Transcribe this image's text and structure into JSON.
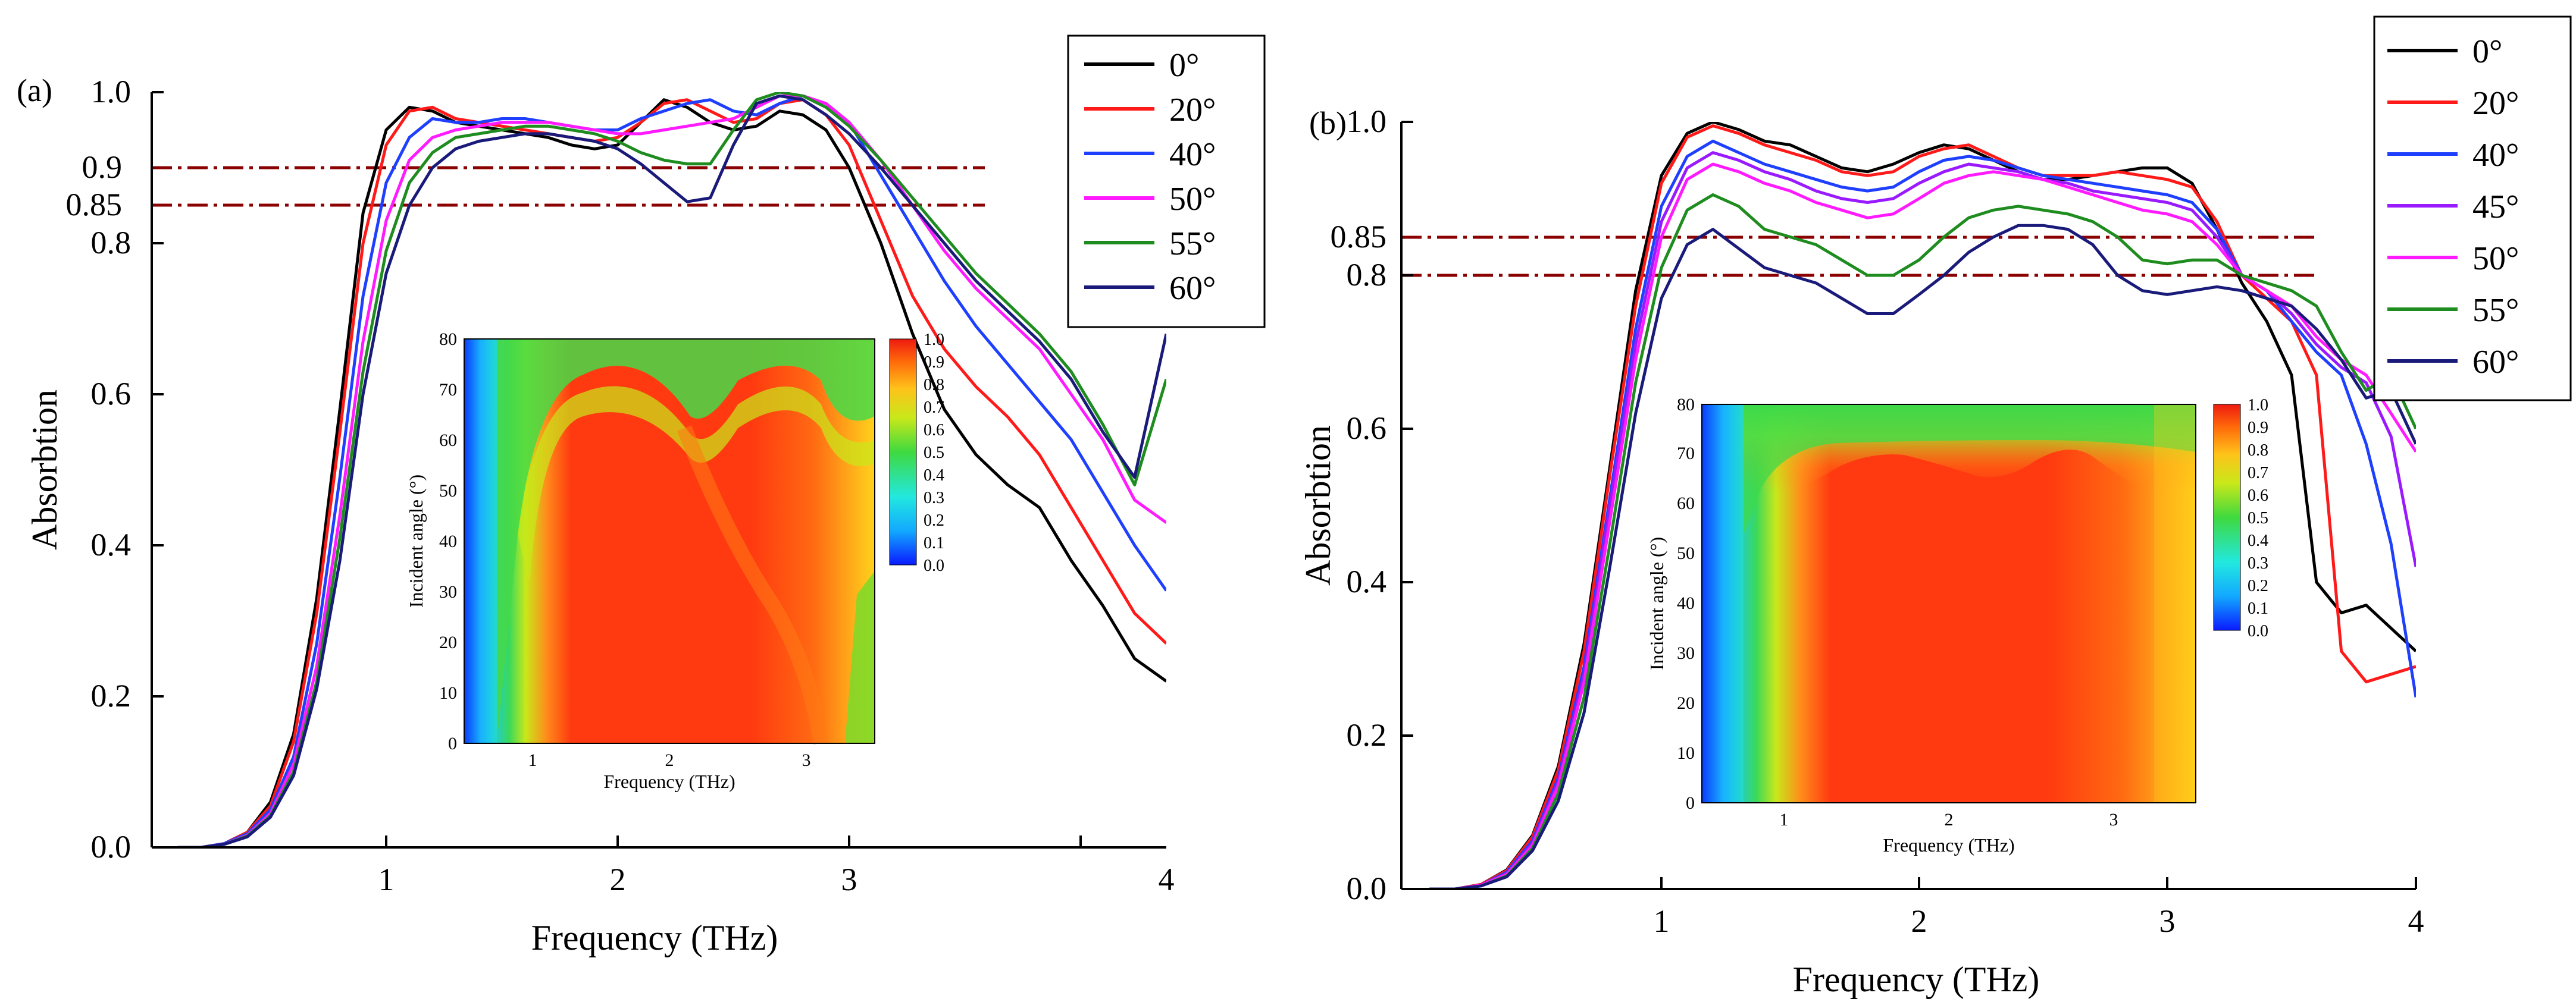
{
  "chart_data": [
    {
      "panel_label": "(a)",
      "type": "line",
      "xlabel": "Frequency (THz)",
      "ylabel": "Absorbtion",
      "xlim": [
        0.1,
        4.0
      ],
      "ylim": [
        0.0,
        1.0
      ],
      "x_ticks": [
        1,
        2,
        3,
        4
      ],
      "x_tick_labels": [
        "1",
        "2",
        "3",
        "4"
      ],
      "y_ticks": [
        0.0,
        0.2,
        0.4,
        0.6,
        0.8,
        0.85,
        0.9,
        1.0
      ],
      "y_tick_labels": [
        "0.0",
        "0.2",
        "0.4",
        "0.6",
        "0.8",
        "0.85",
        "0.9",
        "1.0"
      ],
      "legend_position": "top-right outside",
      "reference_lines": [
        {
          "y": 0.9,
          "style": "dash-dot",
          "color": "#8b0000"
        },
        {
          "y": 0.85,
          "style": "dash-dot",
          "color": "#8b0000"
        }
      ],
      "x": [
        0.1,
        0.2,
        0.3,
        0.4,
        0.5,
        0.6,
        0.7,
        0.8,
        0.9,
        1.0,
        1.1,
        1.2,
        1.3,
        1.4,
        1.5,
        1.6,
        1.7,
        1.8,
        1.9,
        2.0,
        2.1,
        2.2,
        2.3,
        2.4,
        2.5,
        2.6,
        2.7,
        2.8,
        2.9,
        3.0,
        3.1,
        3.2,
        3.3,
        3.4,
        3.5,
        3.6,
        3.7,
        3.8,
        3.9,
        4.0
      ],
      "series": [
        {
          "name": "0°",
          "color": "#000000",
          "values": [
            0.0,
            0.0,
            0.005,
            0.02,
            0.06,
            0.15,
            0.33,
            0.58,
            0.84,
            0.95,
            0.98,
            0.975,
            0.96,
            0.955,
            0.95,
            0.945,
            0.94,
            0.93,
            0.925,
            0.93,
            0.96,
            0.99,
            0.98,
            0.96,
            0.95,
            0.955,
            0.975,
            0.97,
            0.95,
            0.9,
            0.8,
            0.68,
            0.58,
            0.52,
            0.48,
            0.45,
            0.38,
            0.32,
            0.25,
            0.22
          ]
        },
        {
          "name": "20°",
          "color": "#ff1a1a",
          "values": [
            0.0,
            0.0,
            0.005,
            0.02,
            0.055,
            0.14,
            0.31,
            0.55,
            0.8,
            0.93,
            0.975,
            0.98,
            0.965,
            0.96,
            0.955,
            0.95,
            0.945,
            0.94,
            0.935,
            0.94,
            0.96,
            0.985,
            0.99,
            0.975,
            0.96,
            0.965,
            0.985,
            0.99,
            0.97,
            0.93,
            0.83,
            0.73,
            0.66,
            0.61,
            0.57,
            0.52,
            0.45,
            0.38,
            0.31,
            0.27
          ]
        },
        {
          "name": "40°",
          "color": "#1f3fff",
          "values": [
            0.0,
            0.0,
            0.005,
            0.018,
            0.05,
            0.12,
            0.27,
            0.49,
            0.73,
            0.88,
            0.94,
            0.965,
            0.96,
            0.96,
            0.965,
            0.965,
            0.96,
            0.955,
            0.95,
            0.95,
            0.965,
            0.975,
            0.985,
            0.99,
            0.975,
            0.97,
            0.985,
            0.995,
            0.985,
            0.96,
            0.89,
            0.82,
            0.75,
            0.69,
            0.64,
            0.59,
            0.54,
            0.47,
            0.4,
            0.34
          ]
        },
        {
          "name": "50°",
          "color": "#ff1aff",
          "values": [
            0.0,
            0.0,
            0.004,
            0.016,
            0.045,
            0.11,
            0.24,
            0.44,
            0.67,
            0.83,
            0.91,
            0.94,
            0.95,
            0.955,
            0.96,
            0.96,
            0.96,
            0.955,
            0.95,
            0.945,
            0.945,
            0.95,
            0.955,
            0.96,
            0.965,
            0.98,
            0.995,
            0.995,
            0.985,
            0.96,
            0.91,
            0.85,
            0.79,
            0.74,
            0.7,
            0.66,
            0.6,
            0.54,
            0.46,
            0.43
          ]
        },
        {
          "name": "55°",
          "color": "#1e8c1e",
          "values": [
            0.0,
            0.0,
            0.004,
            0.015,
            0.042,
            0.1,
            0.22,
            0.41,
            0.63,
            0.79,
            0.88,
            0.92,
            0.94,
            0.945,
            0.95,
            0.955,
            0.955,
            0.95,
            0.945,
            0.935,
            0.92,
            0.91,
            0.905,
            0.905,
            0.95,
            0.99,
            1.0,
            0.995,
            0.98,
            0.955,
            0.91,
            0.86,
            0.81,
            0.76,
            0.72,
            0.68,
            0.63,
            0.56,
            0.48,
            0.62
          ]
        },
        {
          "name": "60°",
          "color": "#1a1a7a",
          "values": [
            0.0,
            0.0,
            0.004,
            0.014,
            0.04,
            0.095,
            0.21,
            0.38,
            0.6,
            0.76,
            0.85,
            0.9,
            0.925,
            0.935,
            0.94,
            0.945,
            0.945,
            0.94,
            0.935,
            0.925,
            0.905,
            0.88,
            0.855,
            0.86,
            0.93,
            0.985,
            0.995,
            0.99,
            0.97,
            0.945,
            0.9,
            0.85,
            0.8,
            0.75,
            0.71,
            0.67,
            0.62,
            0.55,
            0.49,
            0.68
          ]
        }
      ],
      "inset": {
        "type": "heatmap",
        "xlabel": "Frequency (THz)",
        "ylabel": "Incident angle (°)",
        "xlim": [
          0.5,
          3.5
        ],
        "ylim": [
          0,
          80
        ],
        "x_tick_labels": [
          "1",
          "2",
          "3"
        ],
        "y_tick_labels": [
          "0",
          "10",
          "20",
          "30",
          "40",
          "50",
          "60",
          "70",
          "80"
        ],
        "colorbar_tick_labels": [
          "0.0",
          "0.1",
          "0.2",
          "0.3",
          "0.4",
          "0.5",
          "0.6",
          "0.7",
          "0.8",
          "0.9",
          "1.0"
        ]
      }
    },
    {
      "panel_label": "(b)",
      "type": "line",
      "xlabel": "Frequency (THz)",
      "ylabel": "Absorbtion",
      "xlim": [
        0.1,
        4.0
      ],
      "ylim": [
        0.0,
        1.0
      ],
      "x_ticks": [
        1,
        2,
        3,
        4
      ],
      "x_tick_labels": [
        "1",
        "2",
        "3",
        "4"
      ],
      "y_ticks": [
        0.0,
        0.2,
        0.4,
        0.6,
        0.8,
        0.85,
        1.0
      ],
      "y_tick_labels": [
        "0.0",
        "0.2",
        "0.4",
        "0.6",
        "0.8",
        "0.85",
        "1.0"
      ],
      "legend_position": "top-right outside",
      "reference_lines": [
        {
          "y": 0.85,
          "style": "dash-dot",
          "color": "#8b0000"
        },
        {
          "y": 0.8,
          "style": "dash-dot",
          "color": "#8b0000"
        }
      ],
      "x": [
        0.1,
        0.2,
        0.3,
        0.4,
        0.5,
        0.6,
        0.7,
        0.8,
        0.9,
        1.0,
        1.1,
        1.2,
        1.3,
        1.4,
        1.5,
        1.6,
        1.7,
        1.8,
        1.9,
        2.0,
        2.1,
        2.2,
        2.3,
        2.4,
        2.5,
        2.6,
        2.7,
        2.8,
        2.9,
        3.0,
        3.1,
        3.2,
        3.3,
        3.4,
        3.5,
        3.6,
        3.7,
        3.8,
        3.9,
        4.0
      ],
      "series": [
        {
          "name": "0°",
          "color": "#000000",
          "values": [
            0.0,
            0.0,
            0.006,
            0.025,
            0.07,
            0.16,
            0.32,
            0.55,
            0.78,
            0.93,
            0.985,
            1.0,
            0.99,
            0.975,
            0.97,
            0.955,
            0.94,
            0.935,
            0.945,
            0.96,
            0.97,
            0.965,
            0.95,
            0.935,
            0.925,
            0.925,
            0.93,
            0.935,
            0.94,
            0.94,
            0.92,
            0.86,
            0.79,
            0.74,
            0.67,
            0.4,
            0.36,
            0.37,
            0.34,
            0.31
          ]
        },
        {
          "name": "20°",
          "color": "#ff1a1a",
          "values": [
            0.0,
            0.0,
            0.006,
            0.024,
            0.068,
            0.155,
            0.31,
            0.54,
            0.76,
            0.92,
            0.98,
            0.995,
            0.985,
            0.97,
            0.96,
            0.95,
            0.935,
            0.93,
            0.935,
            0.955,
            0.965,
            0.97,
            0.955,
            0.94,
            0.93,
            0.93,
            0.93,
            0.935,
            0.93,
            0.925,
            0.915,
            0.87,
            0.8,
            0.77,
            0.74,
            0.67,
            0.31,
            0.27,
            0.28,
            0.29
          ]
        },
        {
          "name": "40°",
          "color": "#1f3fff",
          "values": [
            0.0,
            0.0,
            0.005,
            0.022,
            0.063,
            0.145,
            0.29,
            0.51,
            0.73,
            0.89,
            0.955,
            0.975,
            0.96,
            0.945,
            0.935,
            0.925,
            0.915,
            0.91,
            0.915,
            0.935,
            0.95,
            0.955,
            0.95,
            0.94,
            0.93,
            0.925,
            0.92,
            0.915,
            0.91,
            0.905,
            0.895,
            0.86,
            0.8,
            0.78,
            0.74,
            0.7,
            0.67,
            0.58,
            0.45,
            0.25
          ]
        },
        {
          "name": "45°",
          "color": "#9a1aff",
          "values": [
            0.0,
            0.0,
            0.005,
            0.02,
            0.06,
            0.14,
            0.28,
            0.5,
            0.71,
            0.87,
            0.94,
            0.96,
            0.95,
            0.935,
            0.925,
            0.91,
            0.9,
            0.895,
            0.9,
            0.92,
            0.935,
            0.945,
            0.94,
            0.935,
            0.925,
            0.92,
            0.91,
            0.905,
            0.9,
            0.895,
            0.885,
            0.85,
            0.8,
            0.78,
            0.75,
            0.71,
            0.68,
            0.66,
            0.59,
            0.42
          ]
        },
        {
          "name": "50°",
          "color": "#ff1aff",
          "values": [
            0.0,
            0.0,
            0.005,
            0.019,
            0.057,
            0.135,
            0.27,
            0.48,
            0.69,
            0.85,
            0.925,
            0.945,
            0.935,
            0.92,
            0.91,
            0.895,
            0.885,
            0.875,
            0.88,
            0.9,
            0.92,
            0.93,
            0.935,
            0.93,
            0.925,
            0.915,
            0.905,
            0.895,
            0.885,
            0.88,
            0.87,
            0.84,
            0.8,
            0.78,
            0.76,
            0.72,
            0.69,
            0.67,
            0.62,
            0.57
          ]
        },
        {
          "name": "55°",
          "color": "#1e8c1e",
          "values": [
            0.0,
            0.0,
            0.004,
            0.017,
            0.053,
            0.125,
            0.25,
            0.45,
            0.66,
            0.81,
            0.885,
            0.905,
            0.89,
            0.86,
            0.85,
            0.84,
            0.82,
            0.8,
            0.8,
            0.82,
            0.85,
            0.875,
            0.885,
            0.89,
            0.885,
            0.88,
            0.87,
            0.85,
            0.82,
            0.815,
            0.82,
            0.82,
            0.8,
            0.79,
            0.78,
            0.76,
            0.7,
            0.65,
            0.67,
            0.6
          ]
        },
        {
          "name": "60°",
          "color": "#1a1a7a",
          "values": [
            0.0,
            0.0,
            0.004,
            0.016,
            0.05,
            0.115,
            0.23,
            0.42,
            0.62,
            0.77,
            0.84,
            0.86,
            0.835,
            0.81,
            0.8,
            0.79,
            0.77,
            0.75,
            0.75,
            0.775,
            0.8,
            0.83,
            0.85,
            0.865,
            0.865,
            0.86,
            0.84,
            0.8,
            0.78,
            0.775,
            0.78,
            0.785,
            0.78,
            0.77,
            0.76,
            0.73,
            0.69,
            0.64,
            0.65,
            0.58
          ]
        }
      ],
      "inset": {
        "type": "heatmap",
        "xlabel": "Frequency (THz)",
        "ylabel": "Incident angle (°)",
        "xlim": [
          0.5,
          3.5
        ],
        "ylim": [
          0,
          80
        ],
        "x_tick_labels": [
          "1",
          "2",
          "3"
        ],
        "y_tick_labels": [
          "0",
          "10",
          "20",
          "30",
          "40",
          "50",
          "60",
          "70",
          "80"
        ],
        "colorbar_tick_labels": [
          "0.0",
          "0.1",
          "0.2",
          "0.3",
          "0.4",
          "0.5",
          "0.6",
          "0.7",
          "0.8",
          "0.9",
          "1.0"
        ]
      }
    }
  ]
}
